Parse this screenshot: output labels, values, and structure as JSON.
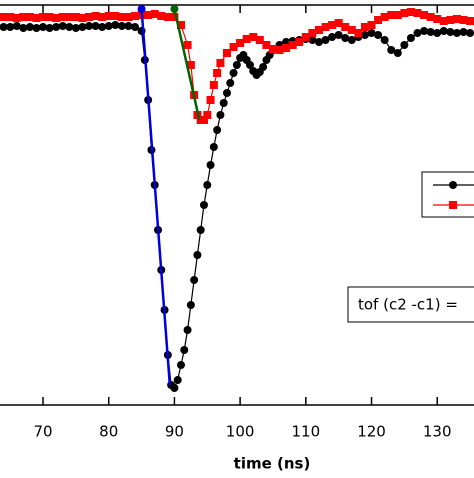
{
  "chart_data": {
    "type": "line",
    "xlabel": "time (ns)",
    "annotation": "tof (c2 -c1) =",
    "xlim": [
      63.45,
      135.6
    ],
    "xticks": [
      70,
      80,
      90,
      100,
      110,
      120,
      130
    ],
    "ylim": [
      0,
      400
    ],
    "legend": "right",
    "series": [
      {
        "color": "#000000",
        "marker": "circle",
        "legend": true,
        "x": [
          64,
          65,
          66,
          67,
          68,
          69,
          70,
          71,
          72,
          73,
          74,
          75,
          76,
          77,
          78,
          79,
          80,
          81,
          82,
          83,
          84,
          85,
          85.5,
          86,
          86.5,
          87,
          87.5,
          88,
          88.5,
          89,
          89.5,
          90,
          90.5,
          91,
          91.5,
          92,
          92.5,
          93,
          93.5,
          94,
          94.5,
          95,
          95.5,
          96,
          96.5,
          97,
          97.5,
          98,
          98.5,
          99,
          99.5,
          100,
          100.5,
          101,
          101.5,
          102,
          102.5,
          103,
          103.5,
          104,
          104.5,
          105,
          106,
          107,
          108,
          109,
          110,
          111,
          112,
          113,
          114,
          115,
          116,
          117,
          118,
          119,
          120,
          121,
          122,
          123,
          124,
          125,
          126,
          127,
          128,
          129,
          130,
          131,
          132,
          133,
          134,
          135
        ],
        "values": [
          378,
          378,
          379,
          377,
          378,
          377,
          378,
          377,
          378,
          379,
          378,
          377,
          378,
          379,
          379,
          378,
          379,
          380,
          379,
          379,
          378,
          374,
          345,
          305,
          255,
          220,
          175,
          135,
          95,
          50,
          20,
          17,
          25,
          40,
          55,
          75,
          100,
          125,
          150,
          175,
          200,
          220,
          240,
          258,
          275,
          290,
          302,
          312,
          322,
          332,
          340,
          347,
          350,
          345,
          340,
          334,
          330,
          333,
          338,
          345,
          350,
          355,
          360,
          363,
          364,
          365,
          366,
          365,
          363,
          365,
          368,
          370,
          367,
          365,
          368,
          370,
          372,
          370,
          365,
          355,
          352,
          360,
          367,
          372,
          374,
          373,
          372,
          374,
          373,
          372,
          373,
          372
        ]
      },
      {
        "color": "#ff0000",
        "marker": "square",
        "legend": true,
        "x": [
          64,
          65,
          66,
          67,
          68,
          69,
          70,
          71,
          72,
          73,
          74,
          75,
          76,
          77,
          78,
          79,
          80,
          81,
          82,
          83,
          84,
          85,
          86,
          87,
          88,
          89,
          90,
          91,
          92,
          92.5,
          93,
          93.5,
          94,
          94.5,
          95,
          95.5,
          96,
          96.5,
          97,
          98,
          99,
          100,
          101,
          102,
          103,
          104,
          105,
          106,
          107,
          108,
          109,
          110,
          111,
          112,
          113,
          114,
          115,
          116,
          117,
          118,
          119,
          120,
          121,
          122,
          123,
          124,
          125,
          126,
          127,
          128,
          129,
          130,
          131,
          132,
          133,
          134,
          135
        ],
        "values": [
          388,
          388,
          387,
          388,
          388,
          387,
          388,
          388,
          387,
          388,
          388,
          388,
          387,
          388,
          389,
          388,
          389,
          389,
          388,
          388,
          389,
          390,
          390,
          391,
          389,
          388,
          388,
          380,
          360,
          340,
          310,
          290,
          285,
          285,
          290,
          305,
          320,
          332,
          342,
          352,
          358,
          362,
          366,
          368,
          365,
          360,
          356,
          355,
          357,
          360,
          363,
          368,
          372,
          375,
          378,
          380,
          382,
          378,
          375,
          372,
          378,
          380,
          385,
          388,
          390,
          390,
          392,
          393,
          392,
          390,
          388,
          386,
          384,
          385,
          386,
          385,
          384
        ]
      },
      {
        "color": "#0000dd",
        "marker": "none",
        "x": [
          85,
          89.3
        ],
        "values": [
          396,
          20
        ]
      },
      {
        "color": "#006400",
        "marker": "none",
        "x": [
          90,
          93.8
        ],
        "values": [
          396,
          285
        ]
      },
      {
        "color": "#0000dd",
        "marker": "circle",
        "x": [
          85
        ],
        "values": [
          396
        ]
      },
      {
        "color": "#006400",
        "marker": "circle",
        "x": [
          90
        ],
        "values": [
          396
        ]
      }
    ]
  }
}
